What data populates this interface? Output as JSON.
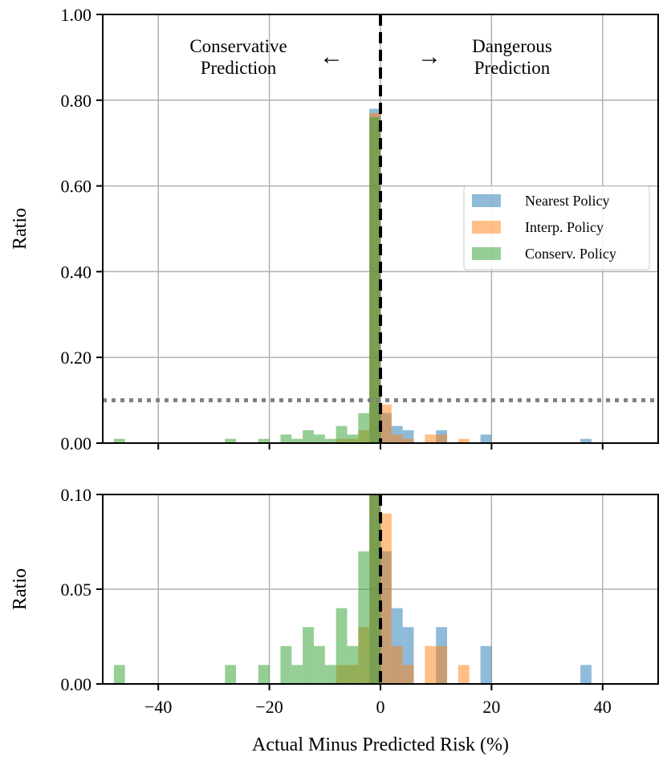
{
  "chart_data": {
    "type": "histogram",
    "xlabel": "Actual Minus Predicted Risk (%)",
    "xlim": [
      -50,
      50
    ],
    "xticks": [
      -40,
      -20,
      0,
      20,
      40
    ],
    "xtick_labels": [
      "−40",
      "−20",
      "0",
      "20",
      "40"
    ],
    "bin_width": 2,
    "series": [
      {
        "name": "Nearest Policy",
        "color": "#1f77b4",
        "bins": [
          {
            "x0": -2,
            "v": 0.78
          },
          {
            "x0": 0,
            "v": 0.07
          },
          {
            "x0": 2,
            "v": 0.04
          },
          {
            "x0": 4,
            "v": 0.03
          },
          {
            "x0": 10,
            "v": 0.03
          },
          {
            "x0": 18,
            "v": 0.02
          },
          {
            "x0": 36,
            "v": 0.01
          }
        ]
      },
      {
        "name": "Interp. Policy",
        "color": "#ff7f0e",
        "bins": [
          {
            "x0": -8,
            "v": 0.01
          },
          {
            "x0": -6,
            "v": 0.01
          },
          {
            "x0": -4,
            "v": 0.03
          },
          {
            "x0": -2,
            "v": 0.77
          },
          {
            "x0": 0,
            "v": 0.09
          },
          {
            "x0": 2,
            "v": 0.02
          },
          {
            "x0": 4,
            "v": 0.01
          },
          {
            "x0": 8,
            "v": 0.02
          },
          {
            "x0": 10,
            "v": 0.02
          },
          {
            "x0": 14,
            "v": 0.01
          }
        ]
      },
      {
        "name": "Conserv. Policy",
        "color": "#2ca02c",
        "bins": [
          {
            "x0": -48,
            "v": 0.01
          },
          {
            "x0": -28,
            "v": 0.01
          },
          {
            "x0": -22,
            "v": 0.01
          },
          {
            "x0": -18,
            "v": 0.02
          },
          {
            "x0": -16,
            "v": 0.01
          },
          {
            "x0": -14,
            "v": 0.03
          },
          {
            "x0": -12,
            "v": 0.02
          },
          {
            "x0": -10,
            "v": 0.01
          },
          {
            "x0": -8,
            "v": 0.04
          },
          {
            "x0": -6,
            "v": 0.02
          },
          {
            "x0": -4,
            "v": 0.07
          },
          {
            "x0": -2,
            "v": 0.76
          }
        ]
      }
    ],
    "threshold": 0.1,
    "panels": [
      {
        "id": "top",
        "ylabel": "Ratio",
        "ylim": [
          0,
          1.0
        ],
        "yticks": [
          0,
          0.2,
          0.4,
          0.6,
          0.8,
          1.0
        ],
        "ytick_labels": [
          "0.00",
          "0.20",
          "0.40",
          "0.60",
          "0.80",
          "1.00"
        ],
        "show_threshold": true,
        "show_xtick_labels": false
      },
      {
        "id": "bottom",
        "ylabel": "Ratio",
        "ylim": [
          0,
          0.1
        ],
        "yticks": [
          0,
          0.05,
          0.1
        ],
        "ytick_labels": [
          "0.00",
          "0.05",
          "0.10"
        ],
        "show_threshold": false,
        "show_xtick_labels": true
      }
    ],
    "annotations": {
      "left_line1": "Conservative",
      "left_line2": "Prediction",
      "right_line1": "Dangerous",
      "right_line2": "Prediction",
      "left_arrow": "←",
      "right_arrow": "→"
    },
    "legend_position": "right"
  }
}
